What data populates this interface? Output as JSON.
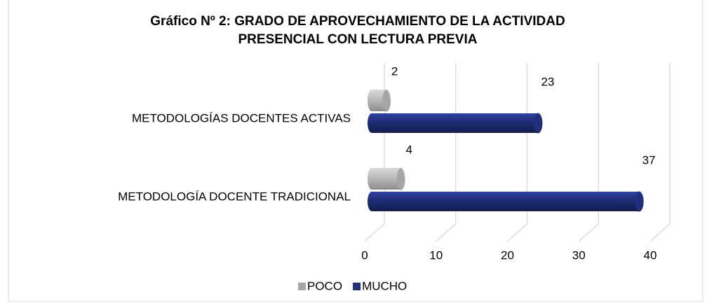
{
  "chart_data": {
    "type": "bar3d",
    "orientation": "horizontal",
    "title": [
      "Gráfico Nº 2: GRADO DE APROVECHAMIENTO DE LA ACTIVIDAD",
      "PRESENCIAL CON LECTURA PREVIA"
    ],
    "categories": [
      "METODOLOGÍA DOCENTE TRADICIONAL",
      "METODOLOGÍAS DOCENTES ACTIVAS"
    ],
    "series": [
      {
        "name": "POCO",
        "color": "#a6a6a6",
        "values": [
          4,
          2
        ]
      },
      {
        "name": "MUCHO",
        "color": "#1f2f7a",
        "values": [
          37,
          23
        ]
      }
    ],
    "xlim": [
      0,
      40
    ],
    "xticks": [
      0,
      10,
      20,
      30,
      40
    ],
    "grid": true,
    "legend": "bottom"
  }
}
